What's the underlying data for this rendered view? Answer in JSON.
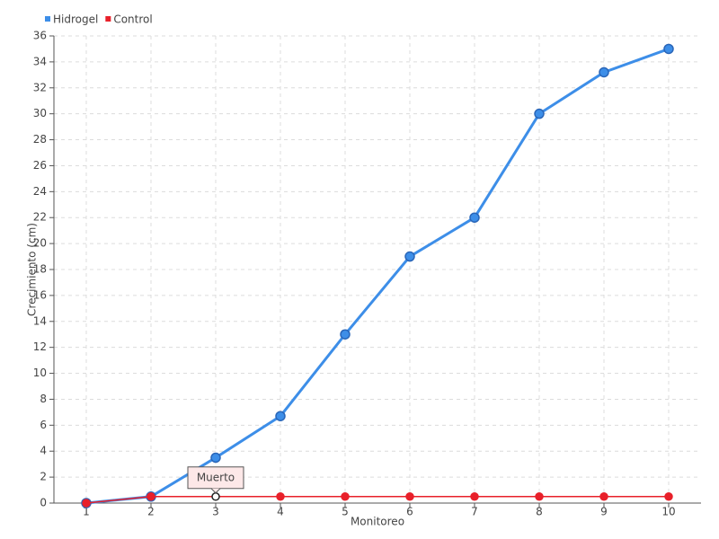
{
  "chart_data": {
    "type": "line",
    "x_label": "Monitoreo",
    "y_label": "Crecimiento (cm)",
    "categories": [
      "1",
      "2",
      "3",
      "4",
      "5",
      "6",
      "7",
      "8",
      "9",
      "10"
    ],
    "series": [
      {
        "name": "Hidrogel",
        "color": "#3d8ee8",
        "values": [
          0,
          0.5,
          3.5,
          6.7,
          13,
          19,
          22,
          30,
          33.2,
          35
        ]
      },
      {
        "name": "Control",
        "color": "#e8202a",
        "values": [
          0,
          0.5,
          0.5,
          0.5,
          0.5,
          0.5,
          0.5,
          0.5,
          0.5,
          0.5
        ]
      }
    ],
    "annotation": "Muerto",
    "ylim": [
      0,
      36
    ],
    "yticks": [
      0,
      2,
      4,
      6,
      8,
      10,
      12,
      14,
      16,
      18,
      20,
      22,
      24,
      26,
      28,
      30,
      32,
      34,
      36
    ],
    "grid": true,
    "legend": "top-left"
  }
}
